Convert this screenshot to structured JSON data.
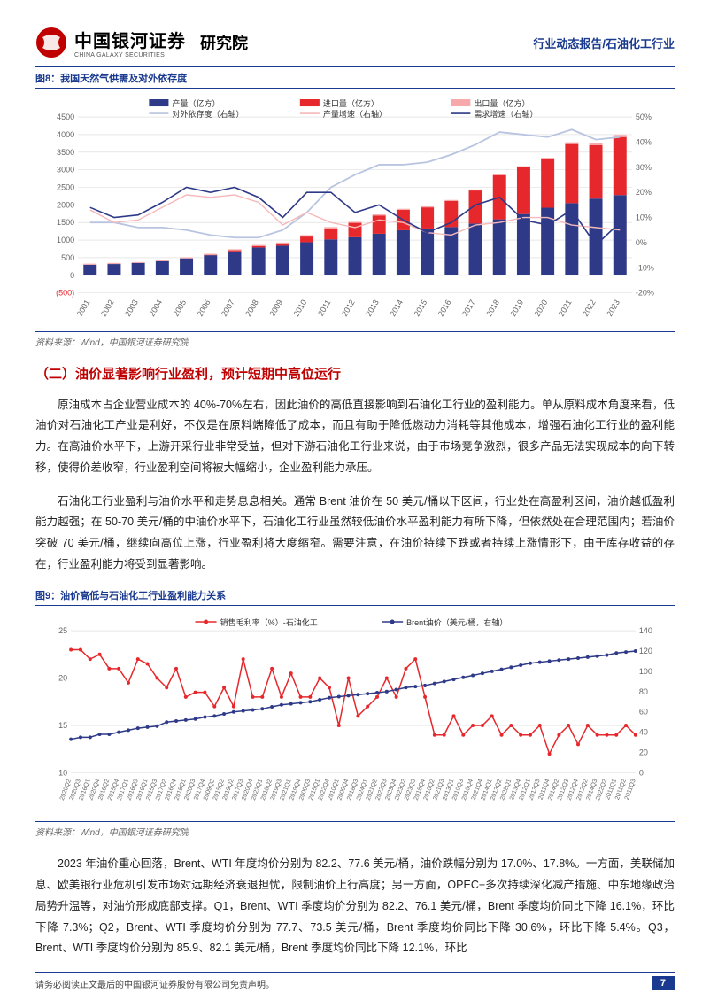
{
  "header": {
    "logo_cn": "中国银河证券",
    "logo_en": "CHINA GALAXY SECURITIES",
    "dept": "研究院",
    "right": "行业动态报告/石油化工行业"
  },
  "fig8": {
    "title": "图8：我国天然气供需及对外依存度",
    "source": "资料来源：Wind，中国银河证券研究院",
    "type": "combo-bar-line",
    "legend": {
      "bar1": "产量（亿方）",
      "bar2": "进口量（亿方）",
      "bar3": "出口量（亿方）",
      "line1": "对外依存度（右轴）",
      "line2": "产量增速（右轴）",
      "line3": "需求增速（右轴）"
    },
    "categories": [
      "2001",
      "2002",
      "2003",
      "2004",
      "2005",
      "2006",
      "2007",
      "2008",
      "2009",
      "2010",
      "2011",
      "2012",
      "2013",
      "2014",
      "2015",
      "2016",
      "2017",
      "2018",
      "2019",
      "2020",
      "2021",
      "2022",
      "2023"
    ],
    "production": [
      300,
      320,
      350,
      400,
      480,
      570,
      680,
      790,
      840,
      940,
      1020,
      1080,
      1180,
      1280,
      1330,
      1370,
      1470,
      1590,
      1740,
      1920,
      2050,
      2180,
      2280
    ],
    "imports": [
      0,
      0,
      0,
      0,
      0,
      10,
      30,
      40,
      60,
      160,
      310,
      410,
      520,
      580,
      600,
      740,
      940,
      1250,
      1330,
      1390,
      1680,
      1520,
      1650
    ],
    "exports": [
      30,
      30,
      25,
      25,
      30,
      30,
      30,
      30,
      30,
      40,
      40,
      30,
      30,
      30,
      30,
      30,
      30,
      30,
      30,
      30,
      50,
      60,
      60
    ],
    "dependence": [
      8,
      8,
      6,
      6,
      5,
      3,
      2,
      2,
      5,
      12,
      22,
      27,
      31,
      31,
      32,
      35,
      39,
      44,
      43,
      42,
      45,
      41,
      42
    ],
    "prod_growth": [
      13,
      8,
      9,
      14,
      19,
      18,
      19,
      16,
      7,
      12,
      8,
      6,
      9,
      8,
      4,
      3,
      7,
      8,
      10,
      10,
      7,
      6,
      5
    ],
    "demand_growth": [
      14,
      10,
      11,
      16,
      22,
      20,
      22,
      18,
      10,
      20,
      20,
      12,
      15,
      9,
      4,
      8,
      15,
      18,
      9,
      7,
      13,
      -1,
      8
    ],
    "y_left": {
      "min": -500,
      "max": 4500,
      "step": 500
    },
    "y_right": {
      "min": -20,
      "max": 50,
      "step": 10,
      "unit": "%"
    },
    "colors": {
      "bar1": "#2e3a87",
      "bar2": "#e6282c",
      "bar3": "#f7a8aa",
      "line1": "#b8c4e0",
      "line2": "#f5b8ba",
      "line3": "#2e3a87",
      "grid": "#d9d9d9",
      "axis_text": "#666666",
      "neg_label": "#e6282c",
      "background": "#ffffff"
    },
    "font_size": 9
  },
  "section": {
    "title": "（二）油价显著影响行业盈利，预计短期中高位运行",
    "p1": "原油成本占企业营业成本的 40%-70%左右，因此油价的高低直接影响到石油化工行业的盈利能力。单从原料成本角度来看，低油价对石油化工产业是利好，不仅是在原料端降低了成本，而且有助于降低燃动力消耗等其他成本，增强石油化工行业的盈利能力。在高油价水平下，上游开采行业非常受益，但对下游石油化工行业来说，由于市场竞争激烈，很多产品无法实现成本的向下转移，使得价差收窄，行业盈利空间将被大幅缩小，企业盈利能力承压。",
    "p2": "石油化工行业盈利与油价水平和走势息息相关。通常 Brent 油价在 50 美元/桶以下区间，行业处在高盈利区间，油价越低盈利能力越强；在 50-70 美元/桶的中油价水平下，石油化工行业虽然较低油价水平盈利能力有所下降，但依然处在合理范围内；若油价突破 70 美元/桶，继续向高位上涨，行业盈利将大度缩窄。需要注意，在油价持续下跌或者持续上涨情形下，由于库存收益的存在，行业盈利能力将受到显著影响。"
  },
  "fig9": {
    "title": "图9：油价高低与石油化工行业盈利能力关系",
    "source": "资料来源：Wind，中国银河证券研究院",
    "type": "dual-line",
    "legend": {
      "line1": "销售毛利率（%）-石油化工",
      "line2": "Brent油价（美元/桶，右轴）"
    },
    "categories": [
      "2020Q2",
      "2020Q3",
      "2016Q1",
      "2020Q4",
      "2016Q2",
      "2015Q4",
      "2017Q1",
      "2016Q3",
      "2019Q1",
      "2015Q3",
      "2017Q2",
      "2016Q4",
      "2018Q1",
      "2020Q3",
      "2017Q4",
      "2009Q2",
      "2015Q2",
      "2019Q2",
      "2017Q3",
      "2020Q4",
      "2023Q1",
      "2018Q2",
      "2019Q3",
      "2021Q1",
      "2019Q4",
      "2009Q3",
      "2015Q1",
      "2022Q4",
      "2010Q1",
      "2009Q4",
      "2018Q3",
      "2024Q1",
      "2021Q2",
      "2022Q3",
      "2023Q4",
      "2023Q2",
      "2023Q3",
      "2018Q4",
      "2010Q2",
      "2021Q3",
      "2013Q1",
      "2010Q3",
      "2010Q4",
      "2021Q4",
      "2014Q1",
      "2013Q2",
      "2022Q1",
      "2013Q4",
      "2012Q1",
      "2013Q3",
      "2011Q4",
      "2014Q2",
      "2012Q3",
      "2012Q4",
      "2012Q2",
      "2014Q3",
      "2022Q2",
      "2011Q1",
      "2011Q2",
      "2011Q3"
    ],
    "gross_margin": [
      23,
      23,
      22,
      22.5,
      21,
      21,
      19.5,
      22,
      21.5,
      20,
      19,
      21,
      18,
      18.5,
      18.5,
      17,
      19,
      17,
      22,
      18,
      18,
      21,
      18,
      20.5,
      18,
      18,
      20,
      19,
      15,
      20,
      16,
      17,
      18,
      20,
      18,
      21,
      22,
      18,
      14,
      14,
      16,
      14,
      15,
      15,
      16,
      14,
      15,
      14,
      14,
      15,
      12,
      14,
      15,
      13,
      15,
      14,
      14,
      14,
      15,
      14
    ],
    "brent": [
      33,
      35,
      35,
      38,
      38,
      40,
      42,
      44,
      45,
      46,
      50,
      51,
      52,
      53,
      55,
      56,
      58,
      60,
      61,
      62,
      63,
      65,
      67,
      68,
      69,
      70,
      72,
      74,
      75,
      76,
      77,
      78,
      79,
      80,
      82,
      84,
      85,
      86,
      88,
      90,
      92,
      94,
      96,
      98,
      100,
      102,
      104,
      106,
      108,
      109,
      110,
      111,
      112,
      113,
      114,
      115,
      116,
      118,
      119,
      120
    ],
    "y_left": {
      "min": 10,
      "max": 25,
      "step": 5
    },
    "y_right": {
      "min": 0,
      "max": 140,
      "step": 20
    },
    "colors": {
      "line1": "#e6282c",
      "line2": "#2e3a87",
      "grid": "#d9d9d9",
      "axis_text": "#666666",
      "background": "#ffffff"
    },
    "marker": "circle",
    "line_width": 1.5,
    "font_size": 8
  },
  "para3": "2023 年油价重心回落，Brent、WTI 年度均价分别为 82.2、77.6 美元/桶，油价跌幅分别为 17.0%、17.8%。一方面，美联储加息、欧美银行业危机引发市场对远期经济衰退担忧，限制油价上行高度；另一方面，OPEC+多次持续深化减产措施、中东地缘政治局势升温等，对油价形成底部支撑。Q1，Brent、WTI 季度均价分别为 82.2、76.1 美元/桶，Brent 季度均价同比下降 16.1%，环比下降 7.3%；Q2，Brent、WTI 季度均价分别为 77.7、73.5 美元/桶，Brent 季度均价同比下降 30.6%，环比下降 5.4%。Q3，Brent、WTI 季度均价分别为 85.9、82.1 美元/桶，Brent 季度均价同比下降 12.1%，环比",
  "footer": {
    "disclaimer": "请务必阅读正文最后的中国银河证券股份有限公司免责声明。",
    "page": "7"
  }
}
